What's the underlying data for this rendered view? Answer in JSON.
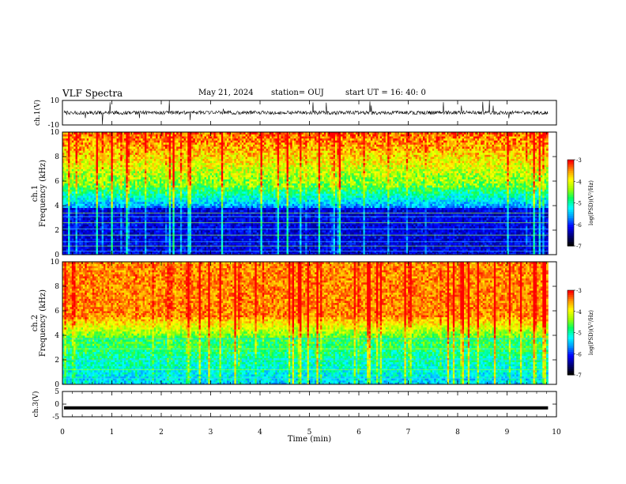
{
  "header": {
    "title": "VLF Spectra",
    "date": "May 21, 2024",
    "station": "station= OUJ",
    "start": "start  UT  =   16: 40: 0"
  },
  "chart_data": [
    {
      "type": "line",
      "panel": "ch1-waveform",
      "ylabel": "ch.1(V)",
      "ylim": [
        -10,
        10
      ],
      "yticks": [
        "10",
        "-10"
      ],
      "baseline": 0,
      "amplitude_typical": 1.5,
      "color": "#000000"
    },
    {
      "type": "heatmap",
      "panel": "ch1-spectrogram",
      "ylabel_line1": "ch.1",
      "ylabel_line2": "Frequency  (kHz)",
      "ylim": [
        0,
        10
      ],
      "yticks": [
        "0",
        "2",
        "4",
        "6",
        "8",
        "10"
      ],
      "xlim": [
        0,
        10
      ],
      "colorbar": {
        "label": "log(PSD)(V²/Hz)",
        "range": [
          -7,
          -3
        ],
        "ticks": [
          "-3",
          "-4",
          "-5",
          "-6",
          "-7"
        ]
      }
    },
    {
      "type": "heatmap",
      "panel": "ch2-spectrogram",
      "ylabel_line1": "ch.2",
      "ylabel_line2": "Frequency  (kHz)",
      "ylim": [
        0,
        10
      ],
      "yticks": [
        "0",
        "2",
        "4",
        "6",
        "8",
        "10"
      ],
      "xlim": [
        0,
        10
      ],
      "colorbar": {
        "label": "log(PSD)(V²/Hz)",
        "range": [
          -7,
          -3
        ],
        "ticks": [
          "-3",
          "-4",
          "-5",
          "-6",
          "-7"
        ]
      }
    },
    {
      "type": "line",
      "panel": "ch3-waveform",
      "ylabel": "ch.3(V)",
      "ylim": [
        -5,
        5
      ],
      "yticks": [
        "5",
        "0",
        "-5"
      ],
      "value": -1.5,
      "color": "#000000"
    }
  ],
  "xaxis": {
    "label": "Time  (min)",
    "range": [
      0,
      10
    ],
    "data_end": 9.83,
    "ticks": [
      "0",
      "1",
      "2",
      "3",
      "4",
      "5",
      "6",
      "7",
      "8",
      "9",
      "10"
    ]
  },
  "colormap": [
    "#000000",
    "#00007a",
    "#0000ff",
    "#0096ff",
    "#00ffff",
    "#00ff64",
    "#a0ff00",
    "#ffff00",
    "#ff9600",
    "#ff0000",
    "#ffffff"
  ]
}
